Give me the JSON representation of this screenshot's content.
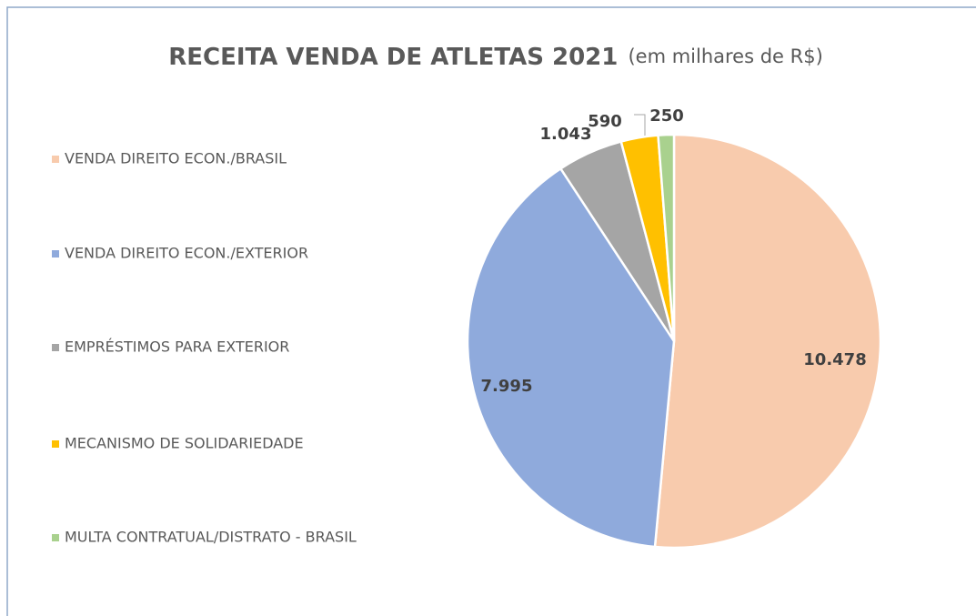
{
  "chart_data": {
    "type": "pie",
    "title": "RECEITA VENDA DE ATLETAS 2021",
    "subtitle": "(em milhares de R$)",
    "categories": [
      "VENDA DIREITO ECON./BRASIL",
      "VENDA DIREITO ECON./EXTERIOR",
      "EMPRÉSTIMOS PARA EXTERIOR",
      "MECANISMO DE SOLIDARIEDADE",
      "MULTA CONTRATUAL/DISTRATO - BRASIL"
    ],
    "values": [
      10478,
      7995,
      1043,
      590,
      250
    ],
    "value_labels": [
      "10.478",
      "7.995",
      "1.043",
      "590",
      "250"
    ],
    "colors": [
      "#f8cbad",
      "#8faadc",
      "#a5a5a5",
      "#ffc000",
      "#a9d18e"
    ],
    "legend": "left"
  }
}
